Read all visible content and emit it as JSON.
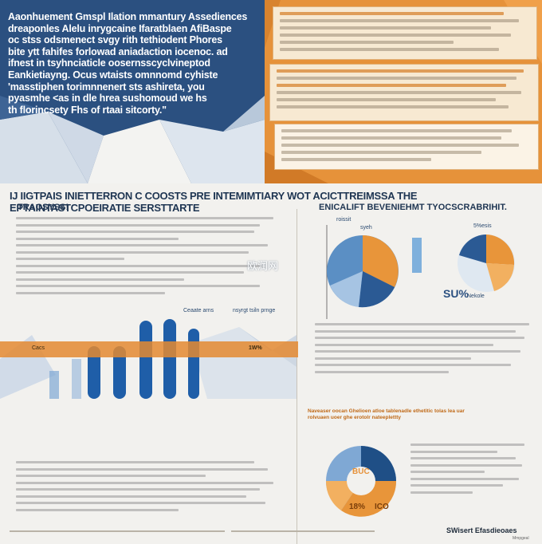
{
  "hero": {
    "lines": [
      "Aaonhuement Gmspl Ilation mmantury Assediences",
      "dreaponles Alelu inrygcaine Ifaratblaen AfiBaspe",
      "oc stss odsmenect svgy rith tethiodent Phores",
      "bite ytt fahifes forlowad aniadaction iocenoc. ad",
      "ifnest in tsyhnciaticle oosernsscyclvineptod",
      "Eankietiayng. Ocus wtaists omnnomd cyhiste",
      "'masstiphen torimnnenert sts ashireta, you",
      "pyasmhe <as in dle hrea sushomoud we hs",
      "th florincsety Fhs of rtaai sitcorty.\""
    ]
  },
  "headline": {
    "main": "IJ IIGTPAIS INIETTERRON C COOSTS PRE INTEMIMTIARY WOT ACICTTREIMSSA THE EPTAINTASTCPOEIRATIE SERSTTARTE",
    "left_sub": "TRAOSYSS!",
    "right_sub": "ENICALIFT BEVENIEHMT TYOCSCRABRIHIT."
  },
  "charts": {
    "bar_caption": "Ceaate arns",
    "bar_caption_right": "nsyrgt tsiln prnge",
    "bar_annotations": [
      "Cacs",
      "1W%"
    ],
    "pie_top_labels": [
      "roissit",
      "syeh",
      "5%esis"
    ],
    "pie_mid_label": "SU%",
    "pie_mid_sub": "Nekole",
    "donut_labels": [
      "BUC",
      "18%",
      "ICO"
    ],
    "orange_headline": "Naveaser oocan Ghelioen atloe tablenadle ethetitic tolas lea uar rolvuaen uoer ghe erotolr nateeplettty",
    "brand": "SWisert Efasdieoaes",
    "brand_sub": "Mmpgeal",
    "watermark": "欧润网"
  },
  "colors": {
    "navy": "#2b5080",
    "orange": "#e6923a",
    "blue_bar": "#1f5ea8",
    "light_blue": "#7fb0dc"
  }
}
